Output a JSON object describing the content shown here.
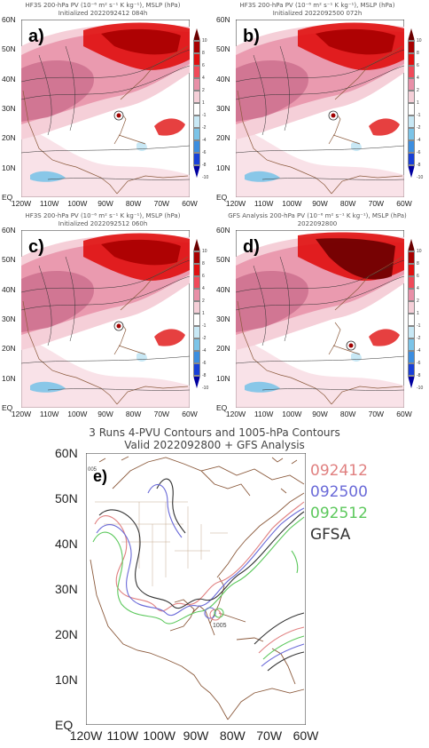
{
  "panels": [
    {
      "id": "a",
      "label": "a)",
      "title_line1": "HF3S 200-hPa PV (10⁻⁶ m² s⁻¹ K kg⁻¹), MSLP (hPa)",
      "title_line2": "Initialized 2022092412 084h"
    },
    {
      "id": "b",
      "label": "b)",
      "title_line1": "HF3S 200-hPa PV (10⁻⁶ m² s⁻¹ K kg⁻¹), MSLP (hPa)",
      "title_line2": "Initialized 2022092500 072h"
    },
    {
      "id": "c",
      "label": "c)",
      "title_line1": "HF3S 200-hPa PV (10⁻⁶ m² s⁻¹ K kg⁻¹), MSLP (hPa)",
      "title_line2": "Initialized 2022092512 060h"
    },
    {
      "id": "d",
      "label": "d)",
      "title_line1": "GFS Analysis 200-hPa PV (10⁻⁶ m² s⁻¹ K kg⁻¹), MSLP (hPa)",
      "title_line2": "2022092800"
    }
  ],
  "lat_labels": [
    "60N",
    "50N",
    "40N",
    "30N",
    "20N",
    "10N",
    "EQ"
  ],
  "lon_labels": [
    "120W",
    "110W",
    "100W",
    "90W",
    "80W",
    "70W",
    "60W"
  ],
  "colorbar": {
    "ticks": [
      "10",
      "8",
      "6",
      "4",
      "2",
      "1",
      "-1",
      "-2",
      "-4",
      "-6",
      "-8",
      "-10"
    ],
    "colors": [
      "#6b0000",
      "#a80000",
      "#e01010",
      "#f04a5a",
      "#e890a8",
      "#f5cfd8",
      "#ffffff",
      "#c8e8f5",
      "#7cc4e8",
      "#3c8ee0",
      "#1840d8",
      "#0000a0"
    ]
  },
  "panel_e": {
    "label": "e)",
    "title_line1": "3 Runs 4-PVU Contours and 1005-hPa Contours",
    "title_line2": "Valid 2022092800 + GFS Analysis",
    "legend": [
      {
        "text": "092412",
        "color": "#e08080"
      },
      {
        "text": "092500",
        "color": "#6a6ad8"
      },
      {
        "text": "092512",
        "color": "#5cc85c"
      },
      {
        "text": "GFSA",
        "color": "#333333"
      }
    ],
    "contour_label_1005": "1005",
    "corner_label": "005"
  },
  "colors": {
    "coast": "#8b5a3c",
    "frame": "#333333"
  }
}
